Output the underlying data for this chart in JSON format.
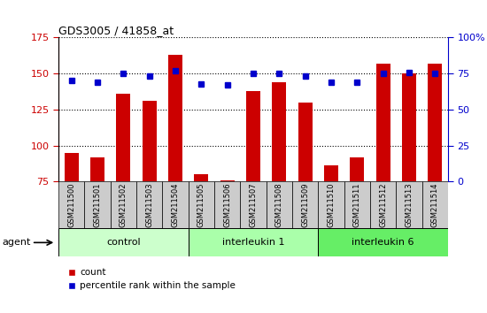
{
  "title": "GDS3005 / 41858_at",
  "samples": [
    "GSM211500",
    "GSM211501",
    "GSM211502",
    "GSM211503",
    "GSM211504",
    "GSM211505",
    "GSM211506",
    "GSM211507",
    "GSM211508",
    "GSM211509",
    "GSM211510",
    "GSM211511",
    "GSM211512",
    "GSM211513",
    "GSM211514"
  ],
  "counts": [
    95,
    92,
    136,
    131,
    163,
    80,
    76,
    138,
    144,
    130,
    86,
    92,
    157,
    150,
    157
  ],
  "percentiles": [
    70,
    69,
    75,
    73,
    77,
    68,
    67,
    75,
    75,
    73,
    69,
    69,
    75,
    76,
    75
  ],
  "groups": [
    {
      "label": "control",
      "start": 0,
      "end": 5,
      "color": "#ccffcc"
    },
    {
      "label": "interleukin 1",
      "start": 5,
      "end": 10,
      "color": "#aaffaa"
    },
    {
      "label": "interleukin 6",
      "start": 10,
      "end": 15,
      "color": "#66ee66"
    }
  ],
  "ylim_left": [
    75,
    175
  ],
  "ylim_right": [
    0,
    100
  ],
  "yticks_left": [
    75,
    100,
    125,
    150,
    175
  ],
  "yticks_right": [
    0,
    25,
    50,
    75,
    100
  ],
  "bar_color": "#cc0000",
  "dot_color": "#0000cc",
  "left_axis_color": "#cc0000",
  "right_axis_color": "#0000cc",
  "sample_box_color": "#cccccc",
  "legend_bar_label": "count",
  "legend_dot_label": "percentile rank within the sample"
}
